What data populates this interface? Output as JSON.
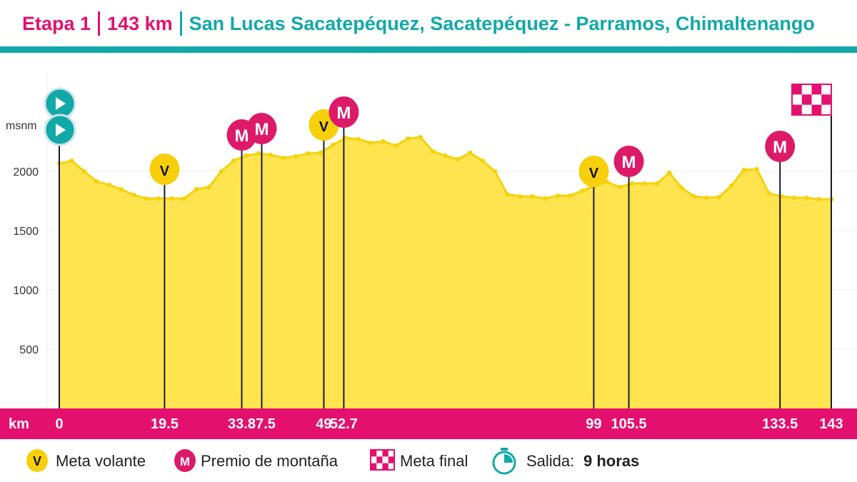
{
  "header": {
    "stage": "Etapa 1",
    "distance": "143 km",
    "route": "San Lucas Sacatepéquez, Sacatepéquez - Parramos, Chimaltenango"
  },
  "colors": {
    "pink": "#e3106f",
    "teal": "#12a8a8",
    "yellow": "#ffe44f",
    "yellow_line": "#f5d20b",
    "marker_yellow": "#f7cf0a",
    "marker_pink": "#dd1a68"
  },
  "chart_data": {
    "type": "area",
    "ylabel": "msnm",
    "xlabel": "km",
    "xlim": [
      0,
      143
    ],
    "ylim": [
      0,
      2500
    ],
    "yticks": [
      500,
      1000,
      1500,
      2000
    ],
    "grid": true,
    "x": [
      0,
      2.3,
      4.6,
      6.9,
      9.2,
      11.5,
      13.8,
      16.1,
      18.4,
      20.8,
      23.1,
      25.4,
      27.7,
      30.0,
      32.3,
      34.6,
      36.9,
      39.2,
      41.5,
      43.8,
      46.1,
      48.4,
      50.7,
      53.0,
      55.4,
      57.7,
      60.0,
      62.3,
      64.6,
      66.9,
      69.2,
      71.5,
      73.8,
      76.1,
      78.4,
      80.7,
      83.0,
      85.3,
      87.6,
      90.0,
      92.3,
      94.6,
      96.9,
      99.2,
      101.5,
      103.8,
      106.1,
      108.4,
      110.7,
      113.0,
      115.3,
      117.6,
      119.9,
      122.2,
      124.5,
      126.8,
      129.2,
      131.5,
      133.8,
      136.1,
      138.4,
      140.7,
      143
    ],
    "y": [
      2066,
      2090,
      2000,
      1916,
      1886,
      1849,
      1801,
      1771,
      1771,
      1771,
      1771,
      1849,
      1867,
      2000,
      2090,
      2133,
      2151,
      2139,
      2114,
      2127,
      2151,
      2157,
      2223,
      2283,
      2271,
      2241,
      2253,
      2217,
      2277,
      2289,
      2169,
      2133,
      2102,
      2157,
      2090,
      2000,
      1807,
      1789,
      1789,
      1771,
      1795,
      1795,
      1837,
      1880,
      1910,
      1867,
      1898,
      1898,
      1898,
      1988,
      1861,
      1789,
      1777,
      1783,
      1880,
      2012,
      2018,
      1813,
      1789,
      1777,
      1777,
      1765,
      1765
    ],
    "markers": [
      {
        "km": 0,
        "label": "0",
        "type": "start"
      },
      {
        "km": 19.5,
        "label": "19.5",
        "type": "V"
      },
      {
        "km": 33.8,
        "label": "33.8",
        "type": "M"
      },
      {
        "km": 37.5,
        "label": "37.5",
        "type": "M"
      },
      {
        "km": 49,
        "label": "49",
        "type": "V"
      },
      {
        "km": 52.7,
        "label": "52.7",
        "type": "M"
      },
      {
        "km": 99,
        "label": "99",
        "type": "V"
      },
      {
        "km": 105.5,
        "label": "105.5",
        "type": "M"
      },
      {
        "km": 133.5,
        "label": "133.5",
        "type": "M"
      },
      {
        "km": 143,
        "label": "143",
        "type": "finish"
      }
    ]
  },
  "legend": {
    "v_letter": "V",
    "m_letter": "M",
    "meta_volante": "Meta volante",
    "premio_montana": "Premio de montaña",
    "meta_final": "Meta final",
    "salida_label": "Salida:",
    "salida_value": "9 horas"
  }
}
